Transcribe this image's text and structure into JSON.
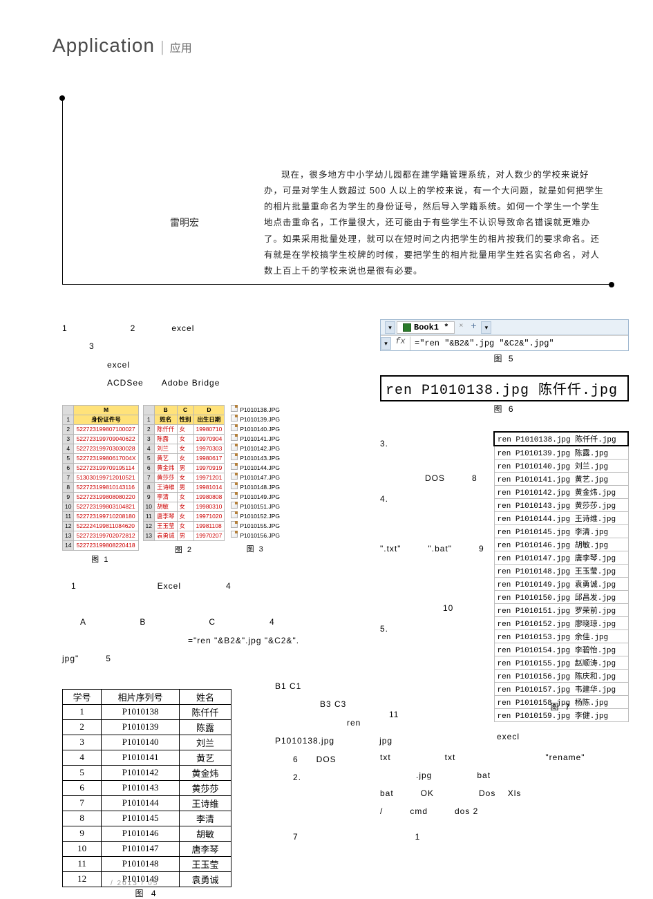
{
  "header": {
    "title_en": "Application",
    "title_cn": "应用"
  },
  "intro": {
    "author": "雷明宏",
    "body": "现在，很多地方中小学幼儿园都在建学籍管理系统，对人数少的学校来说好办，可是对学生人数超过 500 人以上的学校来说，有一个大问题，就是如何把学生的相片批量重命名为学生的身份证号，然后导入学籍系统。如何一个学生一个学生地点击重命名，工作量很大，还可能由于有些学生不认识导致命名错误就更难办了。如果采用批量处理，就可以在短时间之内把学生的相片按我们的要求命名。还有就是在学校搞学生校牌的时候，要把学生的相片批量用学生姓名实名命名，对人数上百上千的学校来说也是很有必要。"
  },
  "left": {
    "p1": "1　　　　　　　2　　　　excel",
    "p2": "　　　3",
    "p3": "　　　　　excel",
    "p4": "　　　　　ACDSee　　Adobe Bridge",
    "after_mini": "　1　　　　　　　　　Excel　　　　　4\n\n　　A　　　　　　B　　　　　　　C　　　　　　4\n　　　　　　　　　　　　　　=\"ren \"&B2&\".jpg \"&C2&\".\njpg\"　　　5"
  },
  "fig1": {
    "caption": "图 1",
    "header_label": "M",
    "col_header": "身份证件号",
    "rows": [
      "522723199807100027",
      "522723199709040622",
      "522723199703030028",
      "52272319980617004X",
      "522723199709195114",
      "513030199712010521",
      "522723199810143116",
      "522723199808080220",
      "522723199803104821",
      "522723199710208180",
      "522224199811084620",
      "522723199702072812",
      "522723199808220418"
    ]
  },
  "fig2": {
    "caption": "图 2",
    "headers": [
      "B",
      "C",
      "D"
    ],
    "col_headers": [
      "姓名",
      "性别",
      "出生日期"
    ],
    "rows": [
      [
        "陈仟仟",
        "女",
        "19980710"
      ],
      [
        "陈露",
        "女",
        "19970904"
      ],
      [
        "刘兰",
        "女",
        "19970303"
      ],
      [
        "黄艺",
        "女",
        "19980617"
      ],
      [
        "黄金炜",
        "男",
        "19970919"
      ],
      [
        "黄莎莎",
        "女",
        "19971201"
      ],
      [
        "王诗维",
        "男",
        "19981014"
      ],
      [
        "李清",
        "女",
        "19980808"
      ],
      [
        "胡敏",
        "女",
        "19980310"
      ],
      [
        "唐李琴",
        "女",
        "19971020"
      ],
      [
        "王玉莹",
        "女",
        "19981108"
      ],
      [
        "袁勇诚",
        "男",
        "19970207"
      ]
    ]
  },
  "fig3": {
    "caption": "图 3",
    "files": [
      "P1010138.JPG",
      "P1010139.JPG",
      "P1010140.JPG",
      "P1010141.JPG",
      "P1010142.JPG",
      "P1010143.JPG",
      "P1010144.JPG",
      "P1010147.JPG",
      "P1010148.JPG",
      "P1010149.JPG",
      "P1010151.JPG",
      "P1010152.JPG",
      "P1010155.JPG",
      "P1010156.JPG"
    ]
  },
  "fig4": {
    "caption": "图 4",
    "headers": [
      "学号",
      "相片序列号",
      "姓名"
    ],
    "rows": [
      [
        "1",
        "P1010138",
        "陈仟仟"
      ],
      [
        "2",
        "P1010139",
        "陈露"
      ],
      [
        "3",
        "P1010140",
        "刘兰"
      ],
      [
        "4",
        "P1010141",
        "黄艺"
      ],
      [
        "5",
        "P1010142",
        "黄金炜"
      ],
      [
        "6",
        "P1010143",
        "黄莎莎"
      ],
      [
        "7",
        "P1010144",
        "王诗维"
      ],
      [
        "8",
        "P1010145",
        "李清"
      ],
      [
        "9",
        "P1010146",
        "胡敏"
      ],
      [
        "10",
        "P1010147",
        "唐李琴"
      ],
      [
        "11",
        "P1010148",
        "王玉莹"
      ],
      [
        "12",
        "P1010149",
        "袁勇诚"
      ]
    ]
  },
  "fig5": {
    "tab_name": "Book1 *",
    "close": "×",
    "plus": "+",
    "fx": "fx",
    "formula": "=\"ren \"&B2&\".jpg \"&C2&\".jpg\"",
    "caption": "图 5"
  },
  "fig6": {
    "text": "ren P1010138.jpg 陈仟仟.jpg",
    "caption": "图 6"
  },
  "fig7": {
    "caption": "图 7",
    "rows": [
      "ren P1010138.jpg 陈仟仟.jpg",
      "ren P1010139.jpg 陈露.jpg",
      "ren P1010140.jpg 刘兰.jpg",
      "ren P1010141.jpg 黄艺.jpg",
      "ren P1010142.jpg 黄金炜.jpg",
      "ren P1010143.jpg 黄莎莎.jpg",
      "ren P1010144.jpg 王诗维.jpg",
      "ren P1010145.jpg 李清.jpg",
      "ren P1010146.jpg 胡敏.jpg",
      "ren P1010147.jpg 唐李琴.jpg",
      "ren P1010148.jpg 王玉莹.jpg",
      "ren P1010149.jpg 袁勇诚.jpg",
      "ren P1010150.jpg 邱昌发.jpg",
      "ren P1010151.jpg 罗荣前.jpg",
      "ren P1010152.jpg 廖晓琼.jpg",
      "ren P1010153.jpg 余佳.jpg",
      "ren P1010154.jpg 李碧怡.jpg",
      "ren P1010155.jpg 赵顺涛.jpg",
      "ren P1010156.jpg 陈庆和.jpg",
      "ren P1010157.jpg 韦建华.jpg",
      "ren P1010158.jpg 杨陈.jpg",
      "ren P1010159.jpg 李健.jpg"
    ]
  },
  "right_text": {
    "l1": "3.",
    "l2": "　　　　　DOS　　　8",
    "l3": "4.",
    "l4": "\".txt\"　　　\".bat\"　　　9",
    "l5": "　　　　　　　10",
    "l6": "5.",
    "l7": "　11",
    "l8": "　　　　　　　　　　　　　execl",
    "l9": "txt　　　　　　txt　　　　　　　　　　\"rename\"",
    "l10": "　　　　.jpg　　　　　bat",
    "l11": "bat　　　OK　　　　　Dos　  Xls",
    "l12": "/　　　cmd　　　dos 2"
  },
  "mid_text": {
    "a": "B1  C1",
    "b": "　　　　　B3   C3",
    "c": "　　　　　　　　ren",
    "d": "P1010138.jpg　　　　　jpg",
    "e": "　　6　　DOS",
    "f": "　　2.",
    "g": "　　7　　　　　　　　　　　　　1"
  },
  "footer": "/ 2013 / 05"
}
